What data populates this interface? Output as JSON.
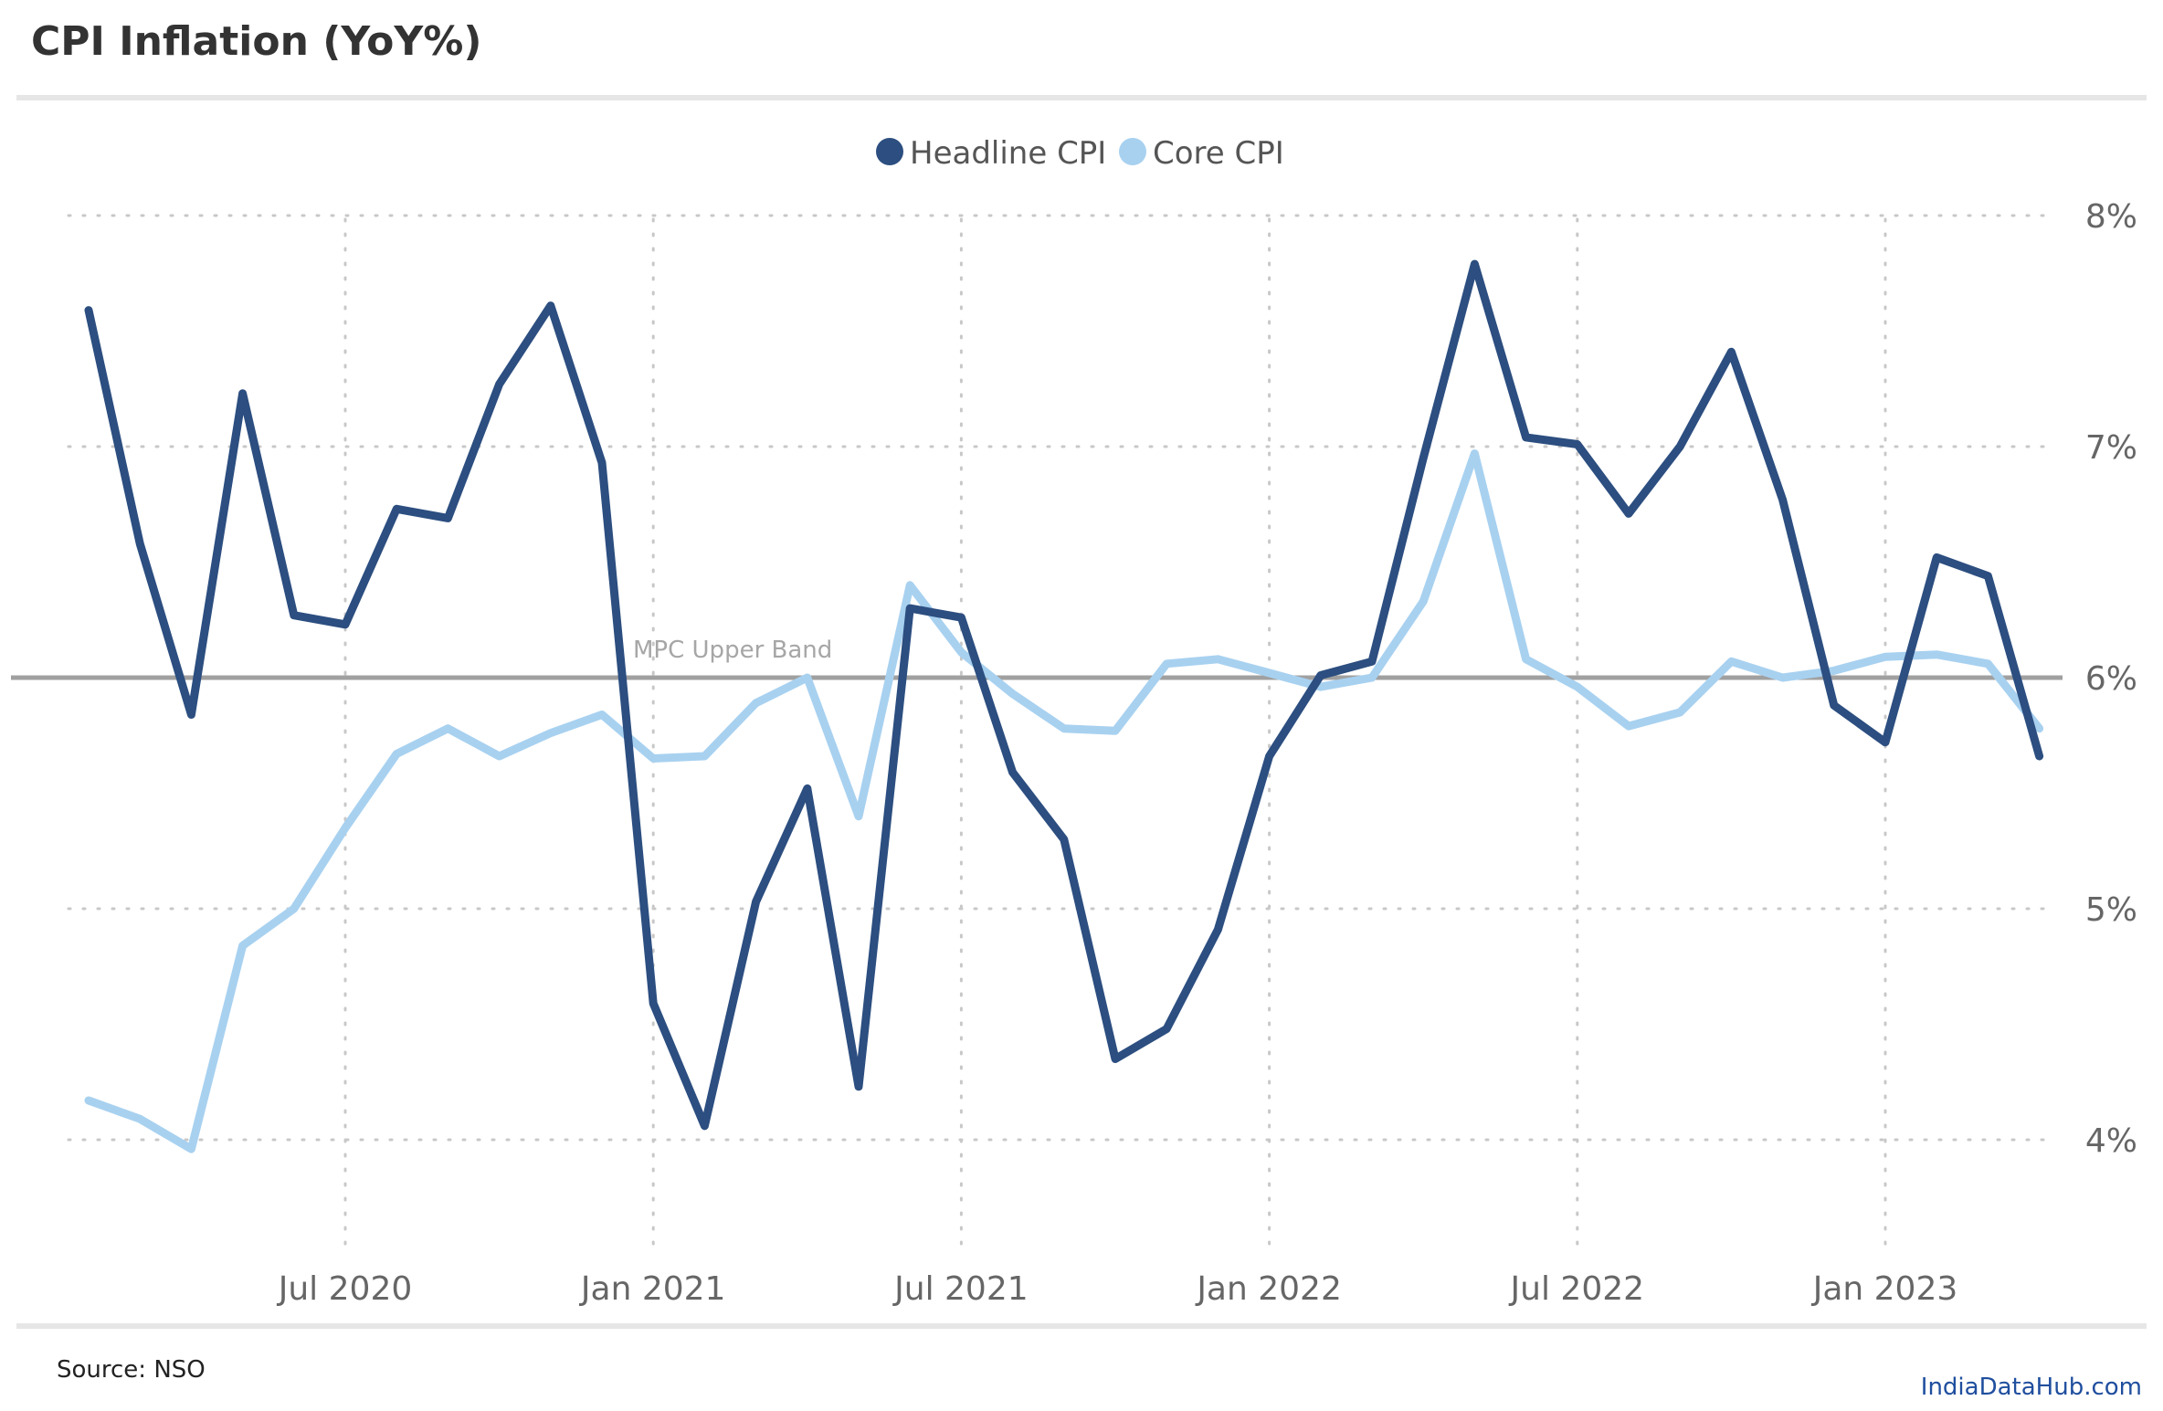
{
  "title": "CPI Inflation (YoY%)",
  "source": "Source: NSO",
  "brand": "IndiaDataHub.com",
  "colors": {
    "headline": "#2c4e80",
    "core": "#a8d1f0",
    "reference": "#a0a0a0",
    "grid": "#c8c8c8",
    "divider": "#e6e6e6"
  },
  "chart_data": {
    "type": "line",
    "title": "CPI Inflation (YoY%)",
    "xlabel": "",
    "ylabel": "",
    "ylim": [
      3.6,
      8.1
    ],
    "yticks": [
      4,
      5,
      6,
      7,
      8
    ],
    "ytick_labels": [
      "4%",
      "5%",
      "6%",
      "7%",
      "8%"
    ],
    "x_start": "2020-02",
    "xticks": [
      {
        "index": 5,
        "label": "Jul 2020"
      },
      {
        "index": 11,
        "label": "Jan 2021"
      },
      {
        "index": 17,
        "label": "Jul 2021"
      },
      {
        "index": 23,
        "label": "Jan 2022"
      },
      {
        "index": 29,
        "label": "Jul 2022"
      },
      {
        "index": 35,
        "label": "Jan 2023"
      }
    ],
    "grid": true,
    "legend_position": "top-center",
    "reference_line": {
      "value": 6,
      "label": "MPC Upper Band"
    },
    "series": [
      {
        "name": "Headline CPI",
        "color": "#2c4e80",
        "values": [
          7.59,
          6.58,
          5.84,
          7.23,
          6.27,
          6.23,
          6.73,
          6.69,
          7.27,
          7.61,
          6.93,
          4.59,
          4.06,
          5.03,
          5.52,
          4.23,
          6.3,
          6.26,
          5.59,
          5.3,
          4.35,
          4.48,
          4.91,
          5.66,
          6.01,
          6.07,
          6.95,
          7.79,
          7.04,
          7.01,
          6.71,
          7.0,
          7.41,
          6.77,
          5.88,
          5.72,
          6.52,
          6.44,
          5.66
        ]
      },
      {
        "name": "Core CPI",
        "color": "#a8d1f0",
        "values": [
          4.17,
          4.09,
          3.96,
          4.84,
          5.0,
          5.35,
          5.67,
          5.78,
          5.66,
          5.76,
          5.84,
          5.65,
          5.66,
          5.89,
          6.0,
          5.4,
          6.4,
          6.11,
          5.93,
          5.78,
          5.77,
          6.06,
          6.08,
          6.02,
          5.96,
          6.0,
          6.33,
          6.97,
          6.08,
          5.96,
          5.79,
          5.85,
          6.07,
          6.0,
          6.03,
          6.09,
          6.1,
          6.06,
          5.78
        ]
      }
    ]
  }
}
